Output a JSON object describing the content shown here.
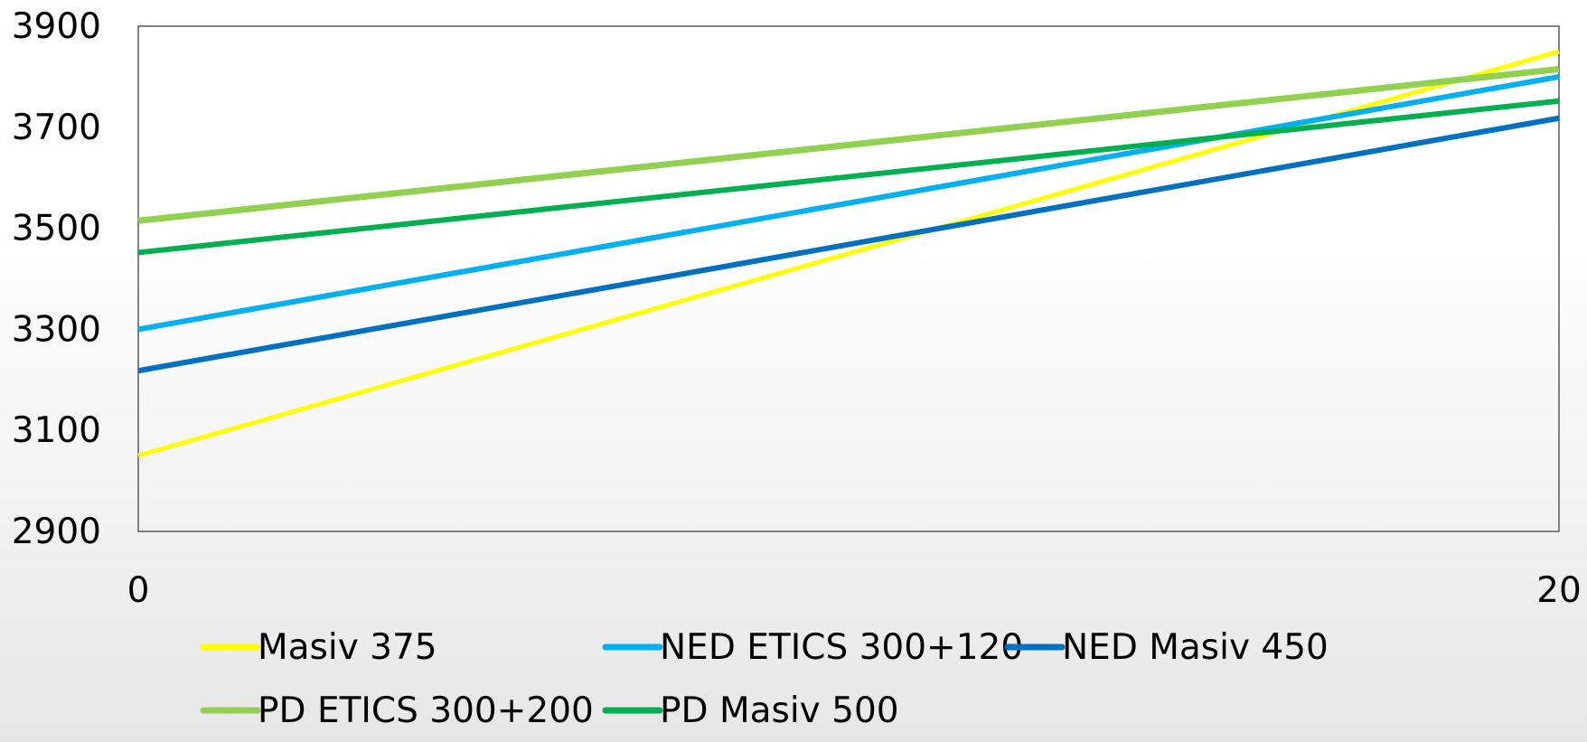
{
  "chart_data": {
    "type": "line",
    "x": [
      0,
      20
    ],
    "xlim": [
      0,
      20
    ],
    "ylim": [
      2900,
      3900
    ],
    "x_ticks": [
      "0",
      "20"
    ],
    "y_ticks": [
      "3900",
      "3700",
      "3500",
      "3300",
      "3100",
      "2900"
    ],
    "grid": false,
    "legend_position": "bottom",
    "series": [
      {
        "name": "Masiv 375",
        "values": [
          3050,
          3850
        ],
        "color": "#ffff00"
      },
      {
        "name": "NED ETICS 300+120",
        "values": [
          3300,
          3800
        ],
        "color": "#00b0f0"
      },
      {
        "name": "NED Masiv 450",
        "values": [
          3218,
          3718
        ],
        "color": "#0070c0"
      },
      {
        "name": "PD ETICS 300+200",
        "values": [
          3515,
          3815
        ],
        "color": "#92d050"
      },
      {
        "name": "PD Masiv 500",
        "values": [
          3452,
          3752
        ],
        "color": "#00b050"
      }
    ]
  }
}
